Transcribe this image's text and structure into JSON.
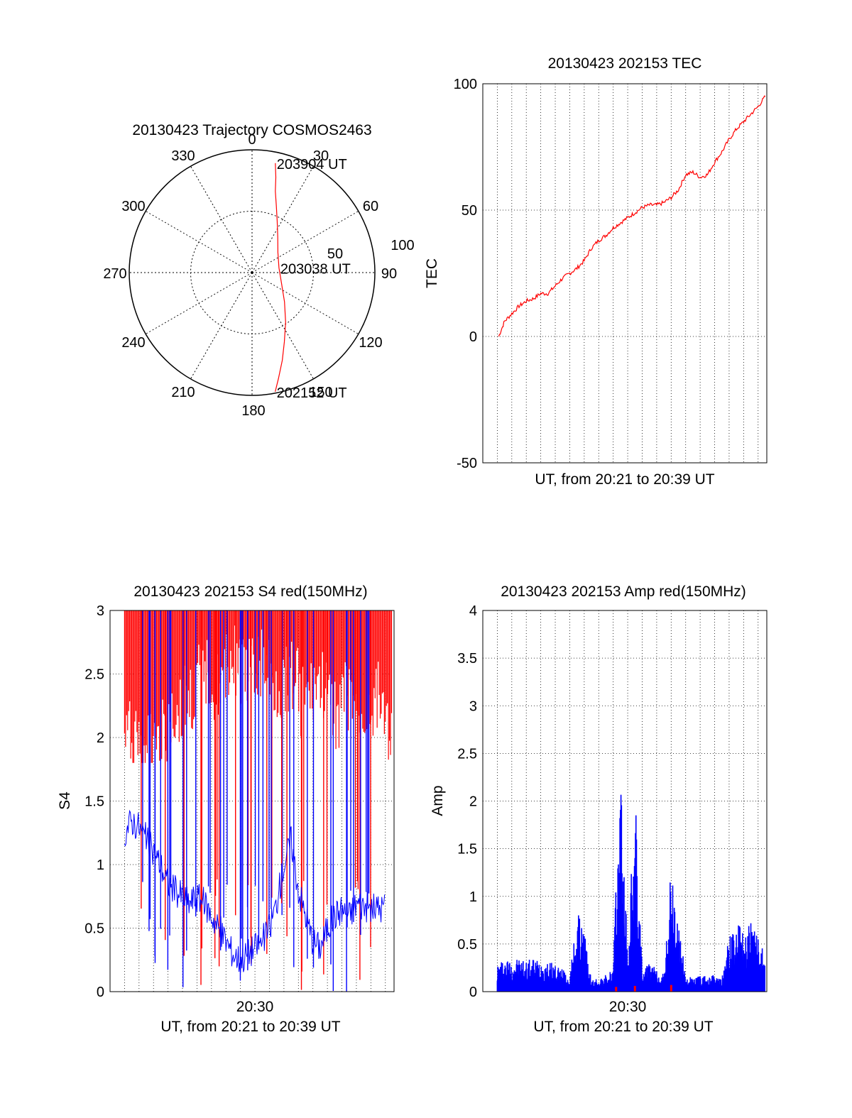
{
  "chart_data": [
    {
      "id": "polar",
      "type": "polar-trajectory",
      "title": "20130423 Trajectory COSMOS2463",
      "azimuth_labels": [
        "0",
        "30",
        "60",
        "90",
        "120",
        "150",
        "180",
        "210",
        "240",
        "270",
        "300",
        "330"
      ],
      "radial_labels": [
        "50",
        "100"
      ],
      "series_color": "#ff0000",
      "trajectory": [
        {
          "az": 12,
          "r": 82
        },
        {
          "az": 14,
          "r": 72
        },
        {
          "az": 16,
          "r": 62
        },
        {
          "az": 20,
          "r": 52
        },
        {
          "az": 26,
          "r": 42
        },
        {
          "az": 36,
          "r": 32
        },
        {
          "az": 52,
          "r": 24
        },
        {
          "az": 80,
          "r": 20
        },
        {
          "az": 110,
          "r": 23
        },
        {
          "az": 132,
          "r": 32
        },
        {
          "az": 146,
          "r": 44
        },
        {
          "az": 155,
          "r": 56
        },
        {
          "az": 161,
          "r": 68
        },
        {
          "az": 166,
          "r": 80
        },
        {
          "az": 169,
          "r": 89
        }
      ],
      "annotations": [
        {
          "text": "203904 UT",
          "az": 12,
          "r": 82
        },
        {
          "text": "203038 UT",
          "az": 80,
          "r": 20
        },
        {
          "text": "202152 UT",
          "az": 169,
          "r": 89
        }
      ]
    },
    {
      "id": "tec",
      "type": "line",
      "title": "20130423 202153 TEC",
      "xlabel": "UT, from 20:21 to 20:39 UT",
      "ylabel": "TEC",
      "ylim": [
        -50,
        100
      ],
      "yticks": [
        "-50",
        "0",
        "50",
        "100"
      ],
      "xlim_minutes": [
        20.0,
        39.6
      ],
      "grid": true,
      "series": [
        {
          "color": "#ff0000",
          "points": [
            [
              21.1,
              0
            ],
            [
              21.5,
              6
            ],
            [
              22.0,
              9
            ],
            [
              22.5,
              12
            ],
            [
              23.0,
              14
            ],
            [
              23.5,
              15
            ],
            [
              24.0,
              17
            ],
            [
              24.5,
              17
            ],
            [
              25.0,
              20
            ],
            [
              25.5,
              23
            ],
            [
              26.0,
              25
            ],
            [
              26.5,
              27
            ],
            [
              27.0,
              30
            ],
            [
              27.5,
              35
            ],
            [
              28.0,
              38
            ],
            [
              28.5,
              40
            ],
            [
              29.0,
              43
            ],
            [
              29.5,
              45
            ],
            [
              30.0,
              47
            ],
            [
              30.5,
              49
            ],
            [
              31.0,
              51
            ],
            [
              31.5,
              52
            ],
            [
              32.0,
              52
            ],
            [
              32.5,
              53
            ],
            [
              33.0,
              55
            ],
            [
              33.5,
              58
            ],
            [
              34.0,
              64
            ],
            [
              34.5,
              65
            ],
            [
              35.0,
              63
            ],
            [
              35.5,
              64
            ],
            [
              36.0,
              69
            ],
            [
              36.5,
              73
            ],
            [
              37.0,
              78
            ],
            [
              37.5,
              82
            ],
            [
              38.0,
              85
            ],
            [
              38.5,
              88
            ],
            [
              39.0,
              91
            ],
            [
              39.5,
              95
            ]
          ]
        }
      ]
    },
    {
      "id": "s4",
      "type": "line",
      "title": "20130423 202153 S4 red(150MHz)",
      "xlabel": "UT, from 20:21 to 20:39 UT",
      "ylabel": "S4",
      "ylim": [
        0,
        3
      ],
      "yticks": [
        "0",
        "0.5",
        "1",
        "1.5",
        "2",
        "2.5",
        "3"
      ],
      "xtick_label": "20:30",
      "xtick_value": 30,
      "xlim_minutes": [
        20.0,
        39.6
      ],
      "grid": true,
      "series": [
        {
          "color": "#0000ff",
          "points": [
            [
              21.0,
              1.25
            ],
            [
              21.5,
              1.35
            ],
            [
              22.0,
              1.3
            ],
            [
              22.5,
              1.2
            ],
            [
              23.0,
              1.1
            ],
            [
              23.5,
              1.0
            ],
            [
              24.0,
              0.85
            ],
            [
              24.5,
              0.8
            ],
            [
              25.0,
              0.75
            ],
            [
              25.5,
              0.7
            ],
            [
              26.0,
              0.75
            ],
            [
              26.5,
              0.7
            ],
            [
              27.0,
              0.6
            ],
            [
              27.5,
              0.5
            ],
            [
              28.0,
              0.4
            ],
            [
              28.5,
              0.3
            ],
            [
              29.0,
              0.25
            ],
            [
              29.5,
              0.3
            ],
            [
              30.0,
              0.35
            ],
            [
              30.5,
              0.4
            ],
            [
              31.0,
              0.5
            ],
            [
              31.5,
              0.7
            ],
            [
              32.0,
              1.0
            ],
            [
              32.5,
              1.2
            ],
            [
              33.0,
              0.8
            ],
            [
              33.5,
              0.6
            ],
            [
              34.0,
              0.4
            ],
            [
              34.5,
              0.35
            ],
            [
              35.0,
              0.5
            ],
            [
              35.5,
              0.6
            ],
            [
              36.0,
              0.65
            ],
            [
              36.5,
              0.6
            ],
            [
              37.0,
              0.7
            ],
            [
              37.5,
              0.68
            ],
            [
              38.0,
              0.65
            ],
            [
              38.5,
              0.66
            ],
            [
              39.0,
              0.67
            ]
          ]
        },
        {
          "color": "#ff0000",
          "points": [
            [
              21.0,
              2.3
            ],
            [
              22.0,
              2.2
            ],
            [
              23.0,
              2.4
            ],
            [
              24.0,
              2.5
            ],
            [
              25.0,
              2.6
            ],
            [
              26.0,
              2.8
            ],
            [
              27.0,
              2.7
            ],
            [
              28.0,
              2.9
            ],
            [
              29.0,
              2.8
            ],
            [
              30.0,
              2.85
            ],
            [
              31.0,
              2.7
            ],
            [
              32.0,
              2.8
            ],
            [
              33.0,
              2.6
            ],
            [
              34.0,
              2.7
            ],
            [
              35.0,
              2.5
            ],
            [
              36.0,
              2.6
            ],
            [
              37.0,
              2.5
            ],
            [
              38.0,
              2.6
            ],
            [
              39.0,
              2.4
            ]
          ]
        }
      ]
    },
    {
      "id": "amp",
      "type": "line",
      "title": "20130423 202153 Amp red(150MHz)",
      "xlabel": "UT, from 20:21 to 20:39 UT",
      "ylabel": "Amp",
      "ylim": [
        0,
        4
      ],
      "yticks": [
        "0",
        "0.5",
        "1",
        "1.5",
        "2",
        "2.5",
        "3",
        "3.5",
        "4"
      ],
      "xtick_label": "20:30",
      "xtick_value": 30,
      "xlim_minutes": [
        20.0,
        39.6
      ],
      "grid": true,
      "series": [
        {
          "color": "#0000ff",
          "points": [
            [
              21.0,
              0.25
            ],
            [
              21.5,
              0.3
            ],
            [
              22.0,
              0.28
            ],
            [
              22.5,
              0.3
            ],
            [
              23.0,
              0.27
            ],
            [
              23.5,
              0.3
            ],
            [
              24.0,
              0.28
            ],
            [
              24.5,
              0.26
            ],
            [
              25.0,
              0.25
            ],
            [
              25.5,
              0.2
            ],
            [
              26.0,
              0.12
            ],
            [
              26.5,
              0.7
            ],
            [
              27.0,
              0.55
            ],
            [
              27.5,
              0.1
            ],
            [
              28.0,
              0.12
            ],
            [
              28.5,
              0.15
            ],
            [
              29.0,
              0.2
            ],
            [
              29.5,
              2.1
            ],
            [
              30.0,
              0.3
            ],
            [
              30.5,
              1.8
            ],
            [
              31.0,
              0.2
            ],
            [
              31.5,
              0.25
            ],
            [
              32.0,
              0.2
            ],
            [
              32.5,
              0.15
            ],
            [
              33.0,
              1.1
            ],
            [
              33.5,
              0.6
            ],
            [
              34.0,
              0.15
            ],
            [
              34.5,
              0.12
            ],
            [
              35.0,
              0.15
            ],
            [
              35.5,
              0.13
            ],
            [
              36.0,
              0.15
            ],
            [
              36.5,
              0.12
            ],
            [
              37.0,
              0.5
            ],
            [
              37.5,
              0.6
            ],
            [
              38.0,
              0.55
            ],
            [
              38.5,
              0.6
            ],
            [
              39.0,
              0.5
            ],
            [
              39.5,
              0.3
            ]
          ]
        },
        {
          "color": "#ff0000",
          "points": [
            [
              29.2,
              0.05
            ],
            [
              30.5,
              0.06
            ],
            [
              33.0,
              0.07
            ]
          ]
        }
      ]
    }
  ]
}
